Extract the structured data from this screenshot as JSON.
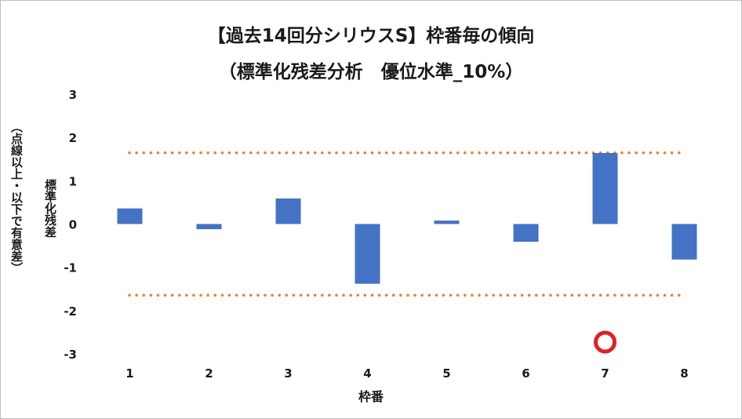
{
  "chart_data": {
    "type": "bar",
    "title": "【過去14回分シリウスS】枠番毎の傾向",
    "subtitle": "（標準化残差分析　優位水準_10%）",
    "xlabel": "枠番",
    "ylabel": "標準化残差",
    "ylabel2": "（点線以上・以下で有意差）",
    "categories": [
      "1",
      "2",
      "3",
      "4",
      "5",
      "6",
      "7",
      "8"
    ],
    "values": [
      0.36,
      -0.12,
      0.59,
      -1.38,
      0.08,
      -0.41,
      1.64,
      -0.82
    ],
    "ylim": [
      -3,
      3
    ],
    "yticks": [
      3,
      2,
      1,
      0,
      -1,
      -2,
      -3
    ],
    "threshold_upper": 1.645,
    "threshold_lower": -1.645,
    "highlight_category": "7",
    "legend": "none",
    "grid": false,
    "colors": {
      "bar": "#4472c4",
      "threshold": "#ed7d31",
      "marker": "#e02020"
    }
  }
}
